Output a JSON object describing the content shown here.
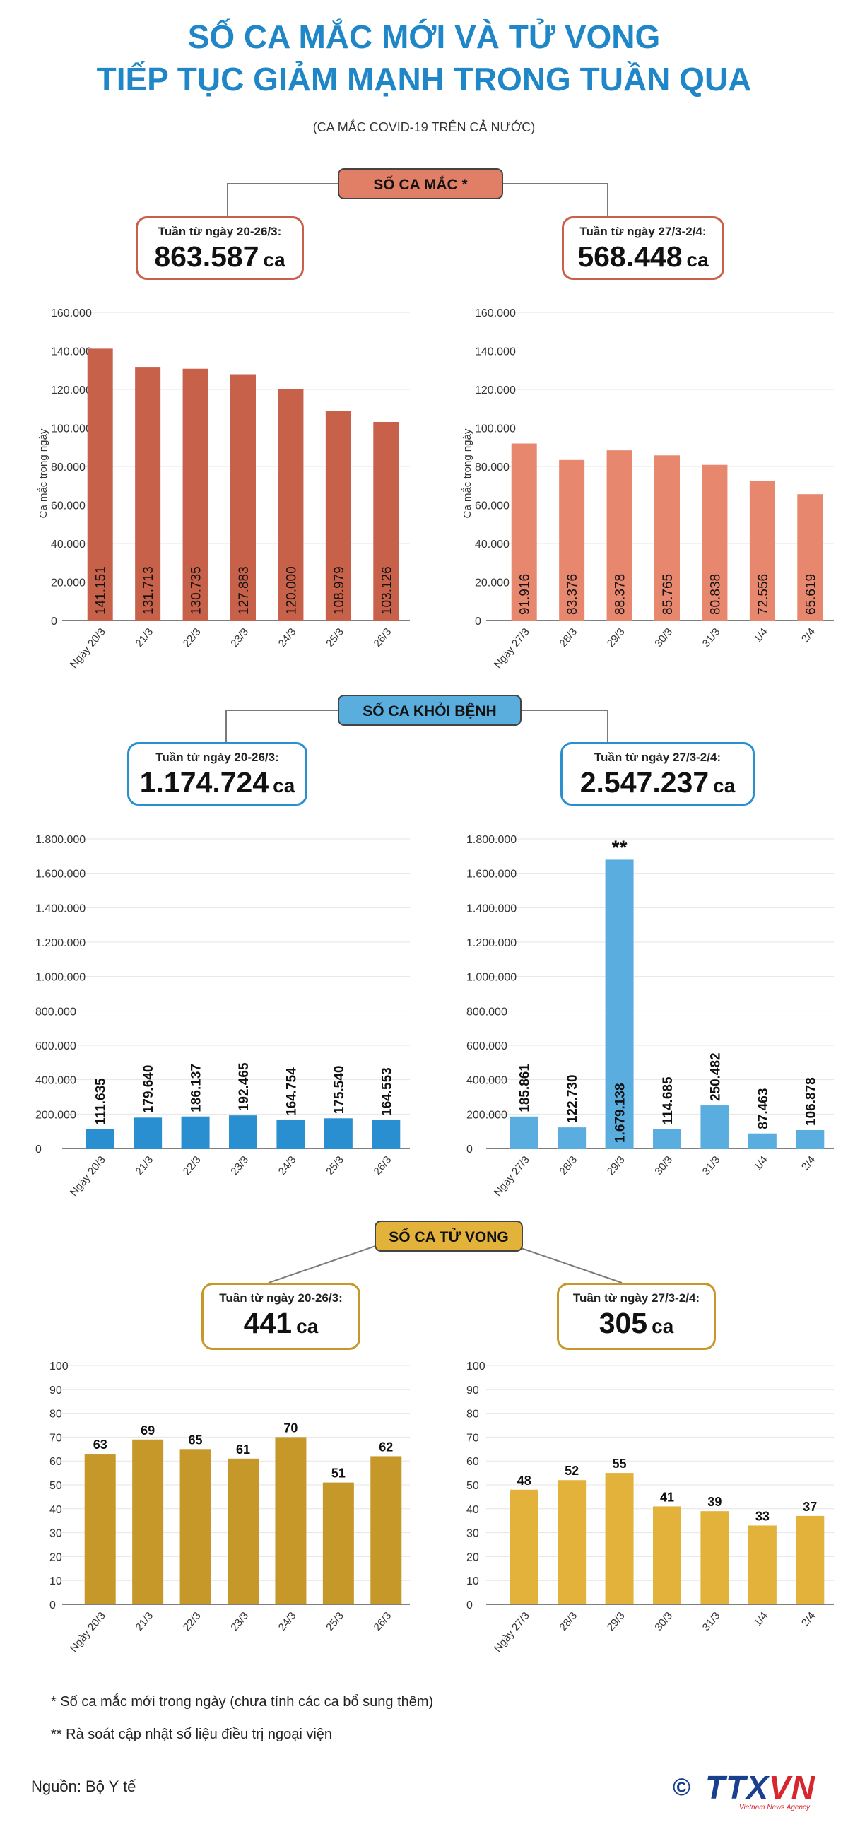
{
  "title_line1": "SỐ CA MẮC MỚI VÀ TỬ VONG",
  "title_line2": "TIẾP TỤC GIẢM MẠNH TRONG TUẦN QUA",
  "subtitle": "(CA MẮC COVID-19 TRÊN CẢ NƯỚC)",
  "sections": [
    {
      "label": "SỐ CA MẮC *",
      "color": "#c8614a",
      "pill_color": "#e07e66",
      "left_card": {
        "label": "Tuần từ ngày 20-26/3:",
        "value": "863.587",
        "unit": "ca"
      },
      "right_card": {
        "label": "Tuần từ ngày 27/3-2/4:",
        "value": "568.448",
        "unit": "ca"
      }
    },
    {
      "label": "SỐ CA KHỎI BỆNH",
      "color": "#2a8fd0",
      "pill_color": "#59aede",
      "left_card": {
        "label": "Tuần từ ngày 20-26/3:",
        "value": "1.174.724",
        "unit": "ca"
      },
      "right_card": {
        "label": "Tuần từ ngày 27/3-2/4:",
        "value": "2.547.237",
        "unit": "ca"
      }
    },
    {
      "label": "SỐ CA TỬ VONG",
      "color": "#c6982a",
      "pill_color": "#e2b23b",
      "left_card": {
        "label": "Tuần từ ngày 20-26/3:",
        "value": "441",
        "unit": "ca"
      },
      "right_card": {
        "label": "Tuần từ ngày 27/3-2/4:",
        "value": "305",
        "unit": "ca"
      }
    }
  ],
  "chart_data": [
    {
      "id": "cases-week1",
      "type": "bar",
      "ylabel": "Ca mắc trong ngày",
      "categories": [
        "Ngày 20/3",
        "21/3",
        "22/3",
        "23/3",
        "24/3",
        "25/3",
        "26/3"
      ],
      "values": [
        141151,
        131713,
        130735,
        127883,
        120000,
        108979,
        103126
      ],
      "labels": [
        "141.151",
        "131.713",
        "130.735",
        "127.883",
        "120.000",
        "108.979",
        "103.126"
      ],
      "ylim": [
        0,
        160000
      ],
      "yticks": [
        "0",
        "20.000",
        "40.000",
        "60.000",
        "80.000",
        "100.000",
        "120.000",
        "140.000",
        "160.000"
      ],
      "color": "#c8614a",
      "label_mode": "inside"
    },
    {
      "id": "cases-week2",
      "type": "bar",
      "ylabel": "Ca mắc trong ngày",
      "categories": [
        "Ngày 27/3",
        "28/3",
        "29/3",
        "30/3",
        "31/3",
        "1/4",
        "2/4"
      ],
      "values": [
        91916,
        83376,
        88378,
        85765,
        80838,
        72556,
        65619
      ],
      "labels": [
        "91.916",
        "83.376",
        "88.378",
        "85.765",
        "80.838",
        "72.556",
        "65.619"
      ],
      "ylim": [
        0,
        160000
      ],
      "yticks": [
        "0",
        "20.000",
        "40.000",
        "60.000",
        "80.000",
        "100.000",
        "120.000",
        "140.000",
        "160.000"
      ],
      "color": "#e6876e",
      "label_mode": "inside"
    },
    {
      "id": "recovered-week1",
      "type": "bar",
      "ylabel": "",
      "categories": [
        "Ngày 20/3",
        "21/3",
        "22/3",
        "23/3",
        "24/3",
        "25/3",
        "26/3"
      ],
      "values": [
        111635,
        179640,
        186137,
        192465,
        164754,
        175540,
        164553
      ],
      "labels": [
        "111.635",
        "179.640",
        "186.137",
        "192.465",
        "164.754",
        "175.540",
        "164.553"
      ],
      "ylim": [
        0,
        1800000
      ],
      "yticks": [
        "0",
        "200.000",
        "400.000",
        "600.000",
        "800.000",
        "1.000.000",
        "1.200.000",
        "1.400.000",
        "1.600.000",
        "1.800.000"
      ],
      "color": "#2a8fd0",
      "label_mode": "above-vertical"
    },
    {
      "id": "recovered-week2",
      "type": "bar",
      "ylabel": "",
      "categories": [
        "Ngày 27/3",
        "28/3",
        "29/3",
        "30/3",
        "31/3",
        "1/4",
        "2/4"
      ],
      "values": [
        185861,
        122730,
        1679138,
        114685,
        250482,
        87463,
        106878
      ],
      "labels": [
        "185.861",
        "122.730",
        "1.679.138",
        "114.685",
        "250.482",
        "87.463",
        "106.878"
      ],
      "ylim": [
        0,
        1800000
      ],
      "yticks": [
        "0",
        "200.000",
        "400.000",
        "600.000",
        "800.000",
        "1.000.000",
        "1.200.000",
        "1.400.000",
        "1.600.000",
        "1.800.000"
      ],
      "color": "#5aaedf",
      "label_mode": "above-vertical",
      "annotation": "**"
    },
    {
      "id": "deaths-week1",
      "type": "bar",
      "ylabel": "",
      "categories": [
        "Ngày 20/3",
        "21/3",
        "22/3",
        "23/3",
        "24/3",
        "25/3",
        "26/3"
      ],
      "values": [
        63,
        69,
        65,
        61,
        70,
        51,
        62
      ],
      "labels": [
        "63",
        "69",
        "65",
        "61",
        "70",
        "51",
        "62"
      ],
      "ylim": [
        0,
        100
      ],
      "yticks": [
        "0",
        "10",
        "20",
        "30",
        "40",
        "50",
        "60",
        "70",
        "80",
        "90",
        "100"
      ],
      "color": "#c6982a",
      "label_mode": "above"
    },
    {
      "id": "deaths-week2",
      "type": "bar",
      "ylabel": "",
      "categories": [
        "Ngày 27/3",
        "28/3",
        "29/3",
        "30/3",
        "31/3",
        "1/4",
        "2/4"
      ],
      "values": [
        48,
        52,
        55,
        41,
        39,
        33,
        37
      ],
      "labels": [
        "48",
        "52",
        "55",
        "41",
        "39",
        "33",
        "37"
      ],
      "ylim": [
        0,
        100
      ],
      "yticks": [
        "0",
        "10",
        "20",
        "30",
        "40",
        "50",
        "60",
        "70",
        "80",
        "90",
        "100"
      ],
      "color": "#e2b23b",
      "label_mode": "above"
    }
  ],
  "notes": {
    "note1": "* Số ca mắc mới trong ngày (chưa tính các ca bổ sung thêm)",
    "note2": "** Rà soát cập nhật số liệu điều trị ngoại viện"
  },
  "source": "Nguồn: Bộ Y tế",
  "logo": {
    "copyright": "©",
    "name_part1": "TTX",
    "name_part2": "VN",
    "tagline": "Vietnam News Agency"
  }
}
